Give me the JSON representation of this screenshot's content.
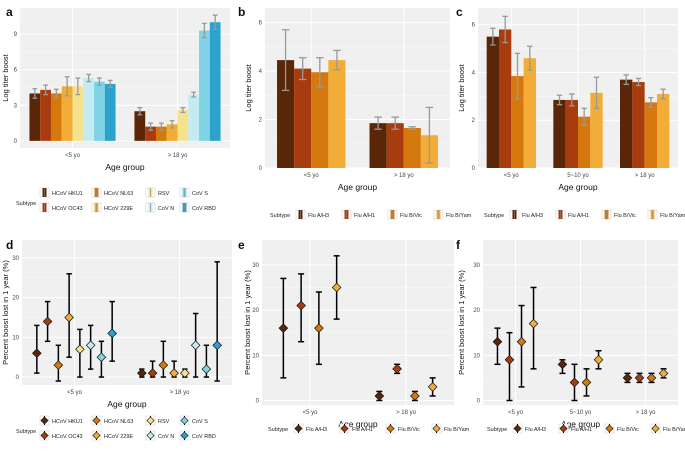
{
  "colors": {
    "HCoV HKU1": "#5a2608",
    "HCoV OC43": "#a83c0e",
    "HCoV NL63": "#d5780e",
    "HCoV 229E": "#f2ac38",
    "RSV": "#f5e28c",
    "CoV N": "#c3ecf2",
    "CoV S": "#7fd3e5",
    "CoV RBD": "#2da3cc",
    "Flu A/H3": "#5a2608",
    "Flu A/H1": "#a83c0e",
    "Flu B/Vic": "#d5780e",
    "Flu B/Yam": "#f2ac38"
  },
  "legends": {
    "title": "Subtype",
    "corona": [
      "HCoV HKU1",
      "HCoV OC43",
      "HCoV NL63",
      "HCoV 229E",
      "RSV",
      "CoV N",
      "CoV S",
      "CoV RBD"
    ],
    "flu": [
      "Flu A/H3",
      "Flu A/H1",
      "Flu B/Vic",
      "Flu B/Yam"
    ]
  },
  "chart_data": [
    {
      "id": "a",
      "panel_label": "a",
      "type": "bar",
      "xlabel": "Age group",
      "ylabel": "Log titer boost",
      "categories": [
        "<5 yo",
        "> 18 yo"
      ],
      "ylim": [
        -0.6,
        11.2
      ],
      "yticks": [
        0,
        3,
        6,
        9
      ],
      "series": [
        {
          "name": "HCoV HKU1",
          "values": [
            4.0,
            2.5
          ],
          "err": [
            0.4,
            0.3
          ]
        },
        {
          "name": "HCoV OC43",
          "values": [
            4.3,
            1.2
          ],
          "err": [
            0.4,
            0.3
          ]
        },
        {
          "name": "HCoV NL63",
          "values": [
            4.0,
            1.2
          ],
          "err": [
            0.35,
            0.3
          ]
        },
        {
          "name": "HCoV 229E",
          "values": [
            4.6,
            1.4
          ],
          "err": [
            0.8,
            0.3
          ]
        },
        {
          "name": "RSV",
          "values": [
            4.6,
            2.6
          ],
          "err": [
            0.7,
            0.2
          ]
        },
        {
          "name": "CoV N",
          "values": [
            5.3,
            3.9
          ],
          "err": [
            0.3,
            0.2
          ]
        },
        {
          "name": "CoV S",
          "values": [
            5.0,
            9.3
          ],
          "err": [
            0.3,
            0.6
          ]
        },
        {
          "name": "CoV RBD",
          "values": [
            4.8,
            10.0
          ],
          "err": [
            0.3,
            0.6
          ]
        }
      ]
    },
    {
      "id": "b",
      "panel_label": "b",
      "type": "bar",
      "xlabel": "Age group",
      "ylabel": "Log titer boost",
      "categories": [
        "<5 yo",
        "> 18 yo"
      ],
      "ylim": [
        0,
        6.6
      ],
      "yticks": [
        0,
        2,
        4,
        6
      ],
      "series": [
        {
          "name": "Flu A/H3",
          "values": [
            4.45,
            1.85
          ],
          "err": [
            1.25,
            0.25
          ]
        },
        {
          "name": "Flu A/H1",
          "values": [
            4.1,
            1.85
          ],
          "err": [
            0.45,
            0.25
          ]
        },
        {
          "name": "Flu B/Vic",
          "values": [
            3.95,
            1.65
          ],
          "err": [
            0.6,
            0.05
          ]
        },
        {
          "name": "Flu B/Yam",
          "values": [
            4.45,
            1.35
          ],
          "err": [
            0.4,
            1.15
          ]
        }
      ]
    },
    {
      "id": "c",
      "panel_label": "c",
      "type": "bar",
      "xlabel": "Age group",
      "ylabel": "Log titer boost",
      "categories": [
        "<5 yo",
        "5~10 yo",
        "> 18 yo"
      ],
      "ylim": [
        0,
        6.7
      ],
      "yticks": [
        0,
        2,
        4,
        6
      ],
      "series": [
        {
          "name": "Flu A/H3",
          "values": [
            5.5,
            2.85,
            3.7
          ],
          "err": [
            0.35,
            0.2,
            0.2
          ]
        },
        {
          "name": "Flu A/H1",
          "values": [
            5.8,
            2.85,
            3.6
          ],
          "err": [
            0.55,
            0.25,
            0.15
          ]
        },
        {
          "name": "Flu B/Vic",
          "values": [
            3.85,
            2.15,
            2.75
          ],
          "err": [
            0.95,
            0.35,
            0.2
          ]
        },
        {
          "name": "Flu B/Yam",
          "values": [
            4.6,
            3.15,
            3.1
          ],
          "err": [
            0.5,
            0.65,
            0.2
          ]
        }
      ]
    },
    {
      "id": "d",
      "panel_label": "d",
      "type": "scatter",
      "xlabel": "Age group",
      "ylabel": "Percent boost lost in 1 year (%)",
      "categories": [
        "<5 yo",
        "> 18 yo"
      ],
      "ylim": [
        -2,
        34.5
      ],
      "yticks": [
        0,
        10,
        20,
        30
      ],
      "series": [
        {
          "name": "HCoV HKU1",
          "values": [
            6,
            1
          ],
          "low": [
            1,
            0
          ],
          "high": [
            13,
            2
          ]
        },
        {
          "name": "HCoV OC43",
          "values": [
            14,
            1
          ],
          "low": [
            9,
            0
          ],
          "high": [
            19,
            4
          ]
        },
        {
          "name": "HCoV NL63",
          "values": [
            3,
            3
          ],
          "low": [
            -1,
            0
          ],
          "high": [
            8,
            9
          ]
        },
        {
          "name": "HCoV 229E",
          "values": [
            15,
            1
          ],
          "low": [
            5,
            0
          ],
          "high": [
            26,
            4
          ]
        },
        {
          "name": "RSV",
          "values": [
            7,
            1
          ],
          "low": [
            0,
            0
          ],
          "high": [
            12,
            2
          ]
        },
        {
          "name": "CoV N",
          "values": [
            8,
            8
          ],
          "low": [
            2,
            0
          ],
          "high": [
            13,
            16
          ]
        },
        {
          "name": "CoV S",
          "values": [
            5,
            2
          ],
          "low": [
            0,
            0
          ],
          "high": [
            9,
            8
          ]
        },
        {
          "name": "CoV RBD",
          "values": [
            11,
            8
          ],
          "low": [
            4,
            -1
          ],
          "high": [
            19,
            29
          ]
        }
      ]
    },
    {
      "id": "e",
      "panel_label": "e",
      "type": "scatter",
      "xlabel": "Age group",
      "ylabel": "Percent boost lost in 1 year (%)",
      "categories": [
        "<5 yo",
        "> 18 yo"
      ],
      "ylim": [
        -1,
        35.5
      ],
      "yticks": [
        0,
        10,
        20,
        30
      ],
      "series": [
        {
          "name": "Flu A/H3",
          "values": [
            16,
            1
          ],
          "low": [
            5,
            0
          ],
          "high": [
            27,
            2
          ]
        },
        {
          "name": "Flu A/H1",
          "values": [
            21,
            7
          ],
          "low": [
            13,
            6
          ],
          "high": [
            28,
            8
          ]
        },
        {
          "name": "Flu B/Vic",
          "values": [
            16,
            1
          ],
          "low": [
            8,
            0
          ],
          "high": [
            24,
            2
          ]
        },
        {
          "name": "Flu B/Yam",
          "values": [
            25,
            3
          ],
          "low": [
            18,
            1
          ],
          "high": [
            32,
            5
          ]
        }
      ]
    },
    {
      "id": "f",
      "panel_label": "f",
      "type": "scatter",
      "xlabel": "Age group",
      "ylabel": "Percent boost lost in 1 year (%)",
      "categories": [
        "<5 yo",
        "5~10 yo",
        "> 18 yo"
      ],
      "ylim": [
        -1,
        35.5
      ],
      "yticks": [
        0,
        10,
        20,
        30
      ],
      "series": [
        {
          "name": "Flu A/H3",
          "values": [
            13,
            8,
            5
          ],
          "low": [
            8,
            6,
            4
          ],
          "high": [
            16,
            9,
            6
          ]
        },
        {
          "name": "Flu A/H1",
          "values": [
            9,
            4,
            5
          ],
          "low": [
            0,
            0,
            4
          ],
          "high": [
            15,
            8,
            6
          ]
        },
        {
          "name": "Flu B/Vic",
          "values": [
            13,
            4,
            5
          ],
          "low": [
            3,
            1,
            4
          ],
          "high": [
            21,
            7,
            6
          ]
        },
        {
          "name": "Flu B/Yam",
          "values": [
            17,
            9,
            6
          ],
          "low": [
            7,
            7,
            5
          ],
          "high": [
            25,
            11,
            7
          ]
        }
      ]
    }
  ]
}
